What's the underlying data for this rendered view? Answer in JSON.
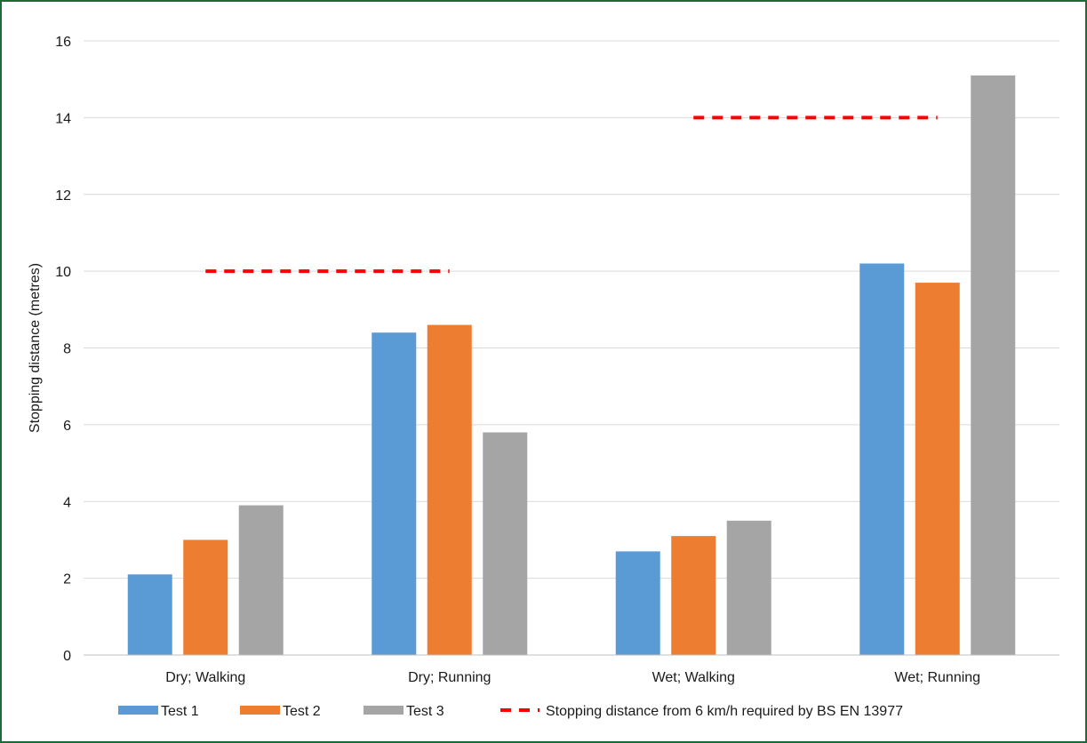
{
  "chart_data": {
    "type": "bar",
    "categories": [
      "Dry; Walking",
      "Dry; Running",
      "Wet; Walking",
      "Wet; Running"
    ],
    "series": [
      {
        "name": "Test 1",
        "values": [
          2.1,
          8.4,
          2.7,
          10.2
        ],
        "color": "#5b9bd5"
      },
      {
        "name": "Test 2",
        "values": [
          3.0,
          8.6,
          3.1,
          9.7
        ],
        "color": "#ed7d31"
      },
      {
        "name": "Test 3",
        "values": [
          3.9,
          5.8,
          3.5,
          15.1
        ],
        "color": "#a5a5a5"
      }
    ],
    "reference_lines": [
      {
        "name": "Stopping distance from 6 km/h required by BS EN 13977",
        "style": "dashed",
        "color": "#ff0000",
        "segments": [
          {
            "from_category": "Dry; Walking",
            "to_category": "Dry; Running",
            "value": 10
          },
          {
            "from_category": "Wet; Walking",
            "to_category": "Wet; Running",
            "value": 14
          }
        ]
      }
    ],
    "title": "",
    "xlabel": "",
    "ylabel": "Stopping distance (metres)",
    "ylim": [
      0,
      16
    ],
    "yticks": [
      0,
      2,
      4,
      6,
      8,
      10,
      12,
      14,
      16
    ],
    "grid": true,
    "legend_position": "bottom",
    "frame_color": "#1e6b3a"
  }
}
